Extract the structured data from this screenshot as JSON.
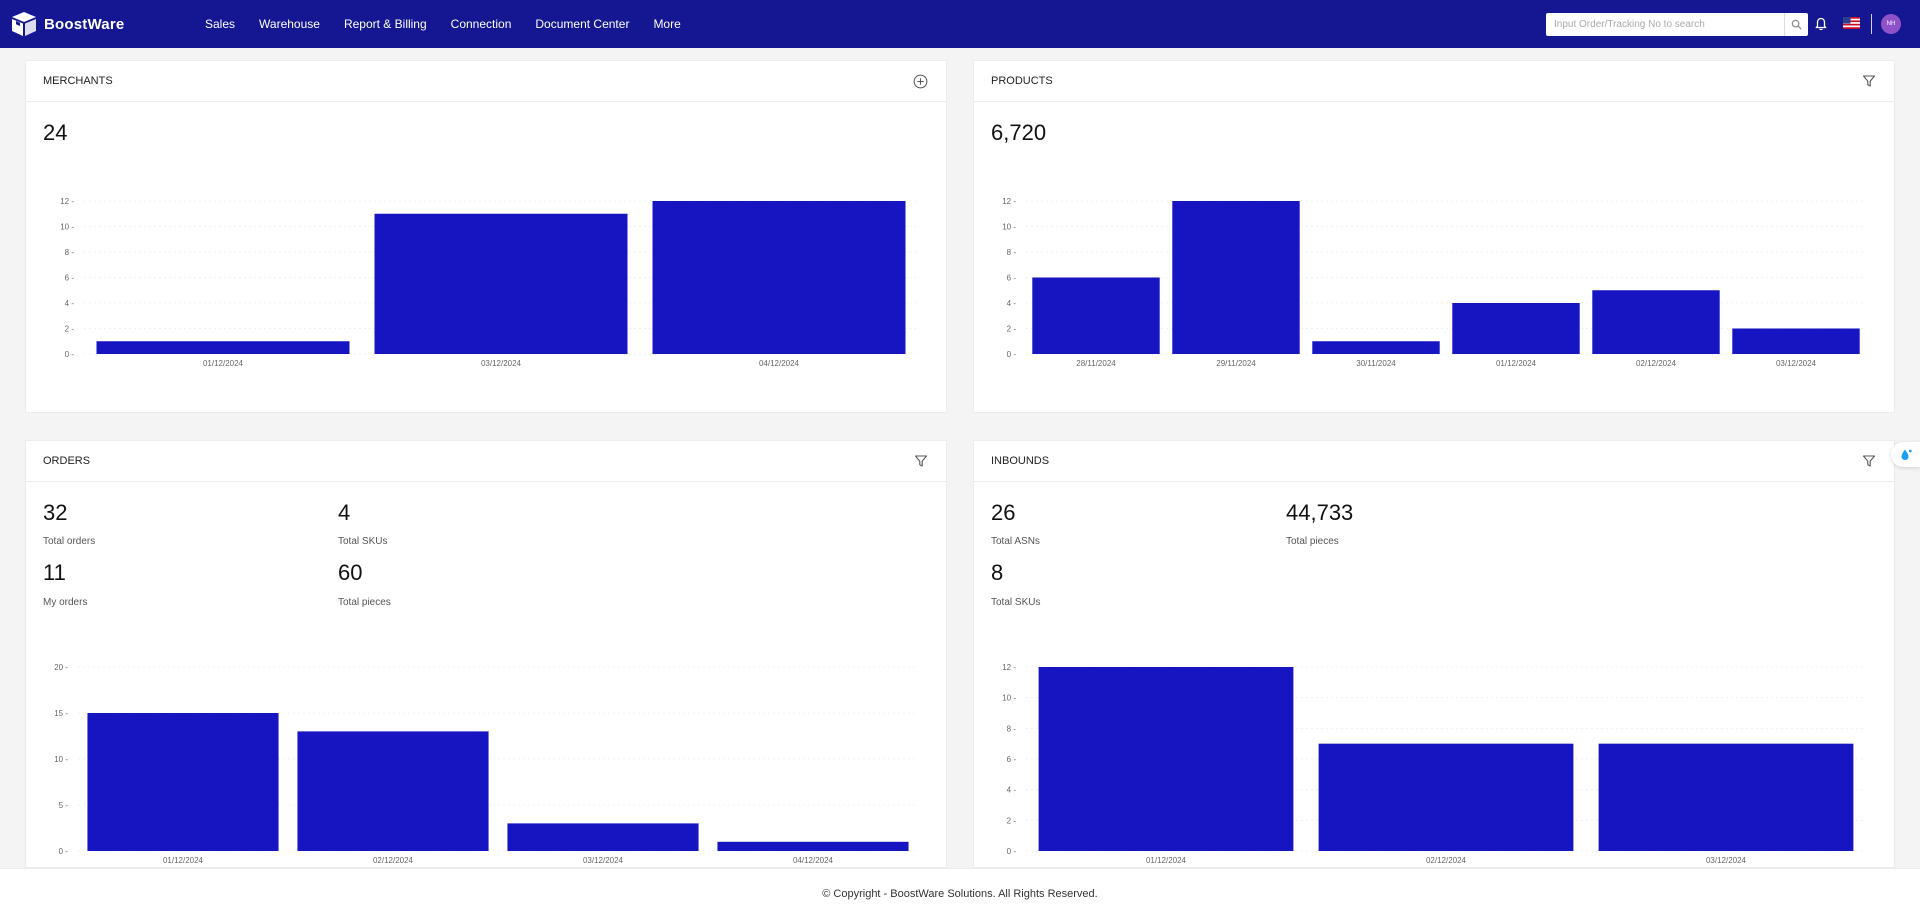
{
  "app": {
    "name": "BoostWare"
  },
  "nav": {
    "items": [
      "Sales",
      "Warehouse",
      "Report & Billing",
      "Connection",
      "Document Center",
      "More"
    ]
  },
  "search": {
    "placeholder": "Input Order/Tracking No to search",
    "value": ""
  },
  "user": {
    "initials": "NH"
  },
  "merchants": {
    "title": "MERCHANTS",
    "total": "24"
  },
  "products": {
    "title": "PRODUCTS",
    "total": "6,720"
  },
  "orders": {
    "title": "ORDERS",
    "total_orders": "32",
    "total_orders_label": "Total orders",
    "total_skus": "4",
    "total_skus_label": "Total SKUs",
    "my_orders": "11",
    "my_orders_label": "My orders",
    "total_pieces": "60",
    "total_pieces_label": "Total pieces"
  },
  "inbounds": {
    "title": "INBOUNDS",
    "total_asns": "26",
    "total_asns_label": "Total ASNs",
    "total_pieces": "44,733",
    "total_pieces_label": "Total pieces",
    "total_skus": "8",
    "total_skus_label": "Total SKUs"
  },
  "footer": {
    "copyright": "© Copyright - BoostWare Solutions. All Rights Reserved."
  },
  "colors": {
    "topbar": "#141791",
    "bar": "#1714c2",
    "accent": "#1a9ff2"
  },
  "chart_data": [
    {
      "id": "merchants",
      "type": "bar",
      "categories": [
        "01/12/2024",
        "03/12/2024",
        "04/12/2024"
      ],
      "values": [
        1,
        11,
        12
      ],
      "ylim": [
        0,
        12
      ],
      "yticks": [
        0,
        2,
        4,
        6,
        8,
        10,
        12
      ]
    },
    {
      "id": "products",
      "type": "bar",
      "categories": [
        "28/11/2024",
        "29/11/2024",
        "30/11/2024",
        "01/12/2024",
        "02/12/2024",
        "03/12/2024"
      ],
      "values": [
        6,
        12,
        1,
        4,
        5,
        2
      ],
      "ylim": [
        0,
        12
      ],
      "yticks": [
        0,
        2,
        4,
        6,
        8,
        10,
        12
      ]
    },
    {
      "id": "orders",
      "type": "bar",
      "categories": [
        "01/12/2024",
        "02/12/2024",
        "03/12/2024",
        "04/12/2024"
      ],
      "values": [
        15,
        13,
        3,
        1
      ],
      "ylim": [
        0,
        20
      ],
      "yticks": [
        0,
        5,
        10,
        15,
        20
      ]
    },
    {
      "id": "inbounds",
      "type": "bar",
      "categories": [
        "01/12/2024",
        "02/12/2024",
        "03/12/2024"
      ],
      "values": [
        12,
        7,
        7
      ],
      "ylim": [
        0,
        12
      ],
      "yticks": [
        0,
        2,
        4,
        6,
        8,
        10,
        12
      ]
    }
  ]
}
